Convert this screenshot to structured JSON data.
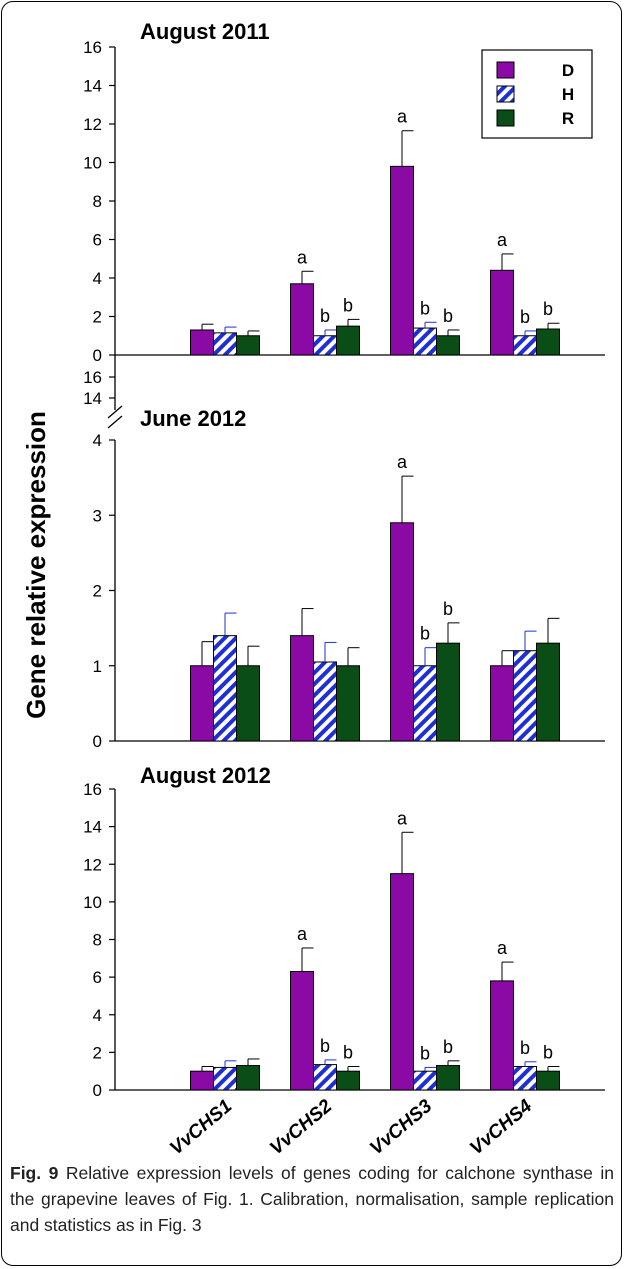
{
  "figure": {
    "ylabel": "Gene relative expression",
    "legend_position": "top-right",
    "colors": {
      "D": "#8b0aa5",
      "H": "#1f2fd6",
      "R": "#0b4d16"
    }
  },
  "chart_data": [
    {
      "type": "bar",
      "title": "August 2011",
      "categories": [
        "VvCHS1",
        "VvCHS2",
        "VvCHS3",
        "VvCHS4"
      ],
      "ylim": [
        0,
        16
      ],
      "yticks": [
        0,
        2,
        4,
        6,
        8,
        10,
        12,
        14,
        16
      ],
      "series": [
        {
          "name": "D",
          "values": [
            1.3,
            3.7,
            9.8,
            4.4
          ],
          "errors": [
            0.3,
            0.65,
            1.85,
            0.85
          ],
          "labels": [
            "",
            "a",
            "a",
            "a"
          ]
        },
        {
          "name": "H",
          "values": [
            1.15,
            1.0,
            1.4,
            1.0
          ],
          "errors": [
            0.3,
            0.3,
            0.3,
            0.25
          ],
          "labels": [
            "",
            "b",
            "b",
            "b"
          ]
        },
        {
          "name": "R",
          "values": [
            1.0,
            1.5,
            1.0,
            1.35
          ],
          "errors": [
            0.25,
            0.35,
            0.3,
            0.3
          ],
          "labels": [
            "",
            "b",
            "b",
            "b"
          ]
        }
      ],
      "legend": [
        "D",
        "H",
        "R"
      ]
    },
    {
      "type": "bar",
      "title": "June 2012",
      "categories": [
        "VvCHS1",
        "VvCHS2",
        "VvCHS3",
        "VvCHS4"
      ],
      "ylim": [
        0,
        4
      ],
      "axis_break": {
        "from": 4,
        "to": 14,
        "upper_ticks": [
          14,
          16
        ]
      },
      "yticks": [
        0,
        1,
        2,
        3,
        4
      ],
      "series": [
        {
          "name": "D",
          "values": [
            1.0,
            1.4,
            2.9,
            1.0
          ],
          "errors": [
            0.32,
            0.36,
            0.62,
            0.2
          ],
          "labels": [
            "",
            "",
            "a",
            ""
          ]
        },
        {
          "name": "H",
          "values": [
            1.4,
            1.05,
            1.0,
            1.2
          ],
          "errors": [
            0.3,
            0.26,
            0.24,
            0.26
          ],
          "labels": [
            "",
            "",
            "b",
            ""
          ]
        },
        {
          "name": "R",
          "values": [
            1.0,
            1.0,
            1.3,
            1.3
          ],
          "errors": [
            0.26,
            0.24,
            0.27,
            0.33
          ],
          "labels": [
            "",
            "",
            "b",
            ""
          ]
        }
      ]
    },
    {
      "type": "bar",
      "title": "August 2012",
      "categories": [
        "VvCHS1",
        "VvCHS2",
        "VvCHS3",
        "VvCHS4"
      ],
      "ylim": [
        0,
        16
      ],
      "yticks": [
        0,
        2,
        4,
        6,
        8,
        10,
        12,
        14,
        16
      ],
      "series": [
        {
          "name": "D",
          "values": [
            1.0,
            6.3,
            11.5,
            5.8
          ],
          "errors": [
            0.25,
            1.25,
            2.2,
            1.0
          ],
          "labels": [
            "",
            "a",
            "a",
            "a"
          ]
        },
        {
          "name": "H",
          "values": [
            1.2,
            1.35,
            1.0,
            1.25
          ],
          "errors": [
            0.35,
            0.25,
            0.2,
            0.25
          ],
          "labels": [
            "",
            "b",
            "b",
            "b"
          ]
        },
        {
          "name": "R",
          "values": [
            1.3,
            1.0,
            1.3,
            1.0
          ],
          "errors": [
            0.35,
            0.25,
            0.25,
            0.25
          ],
          "labels": [
            "",
            "b",
            "b",
            "b"
          ]
        }
      ]
    }
  ],
  "caption": {
    "label": "Fig. 9",
    "text": " Relative expression levels of genes coding for calchone synthase in the grapevine leaves of Fig. 1. Calibration, normalisation, sample replication and statistics as in Fig. 3"
  }
}
